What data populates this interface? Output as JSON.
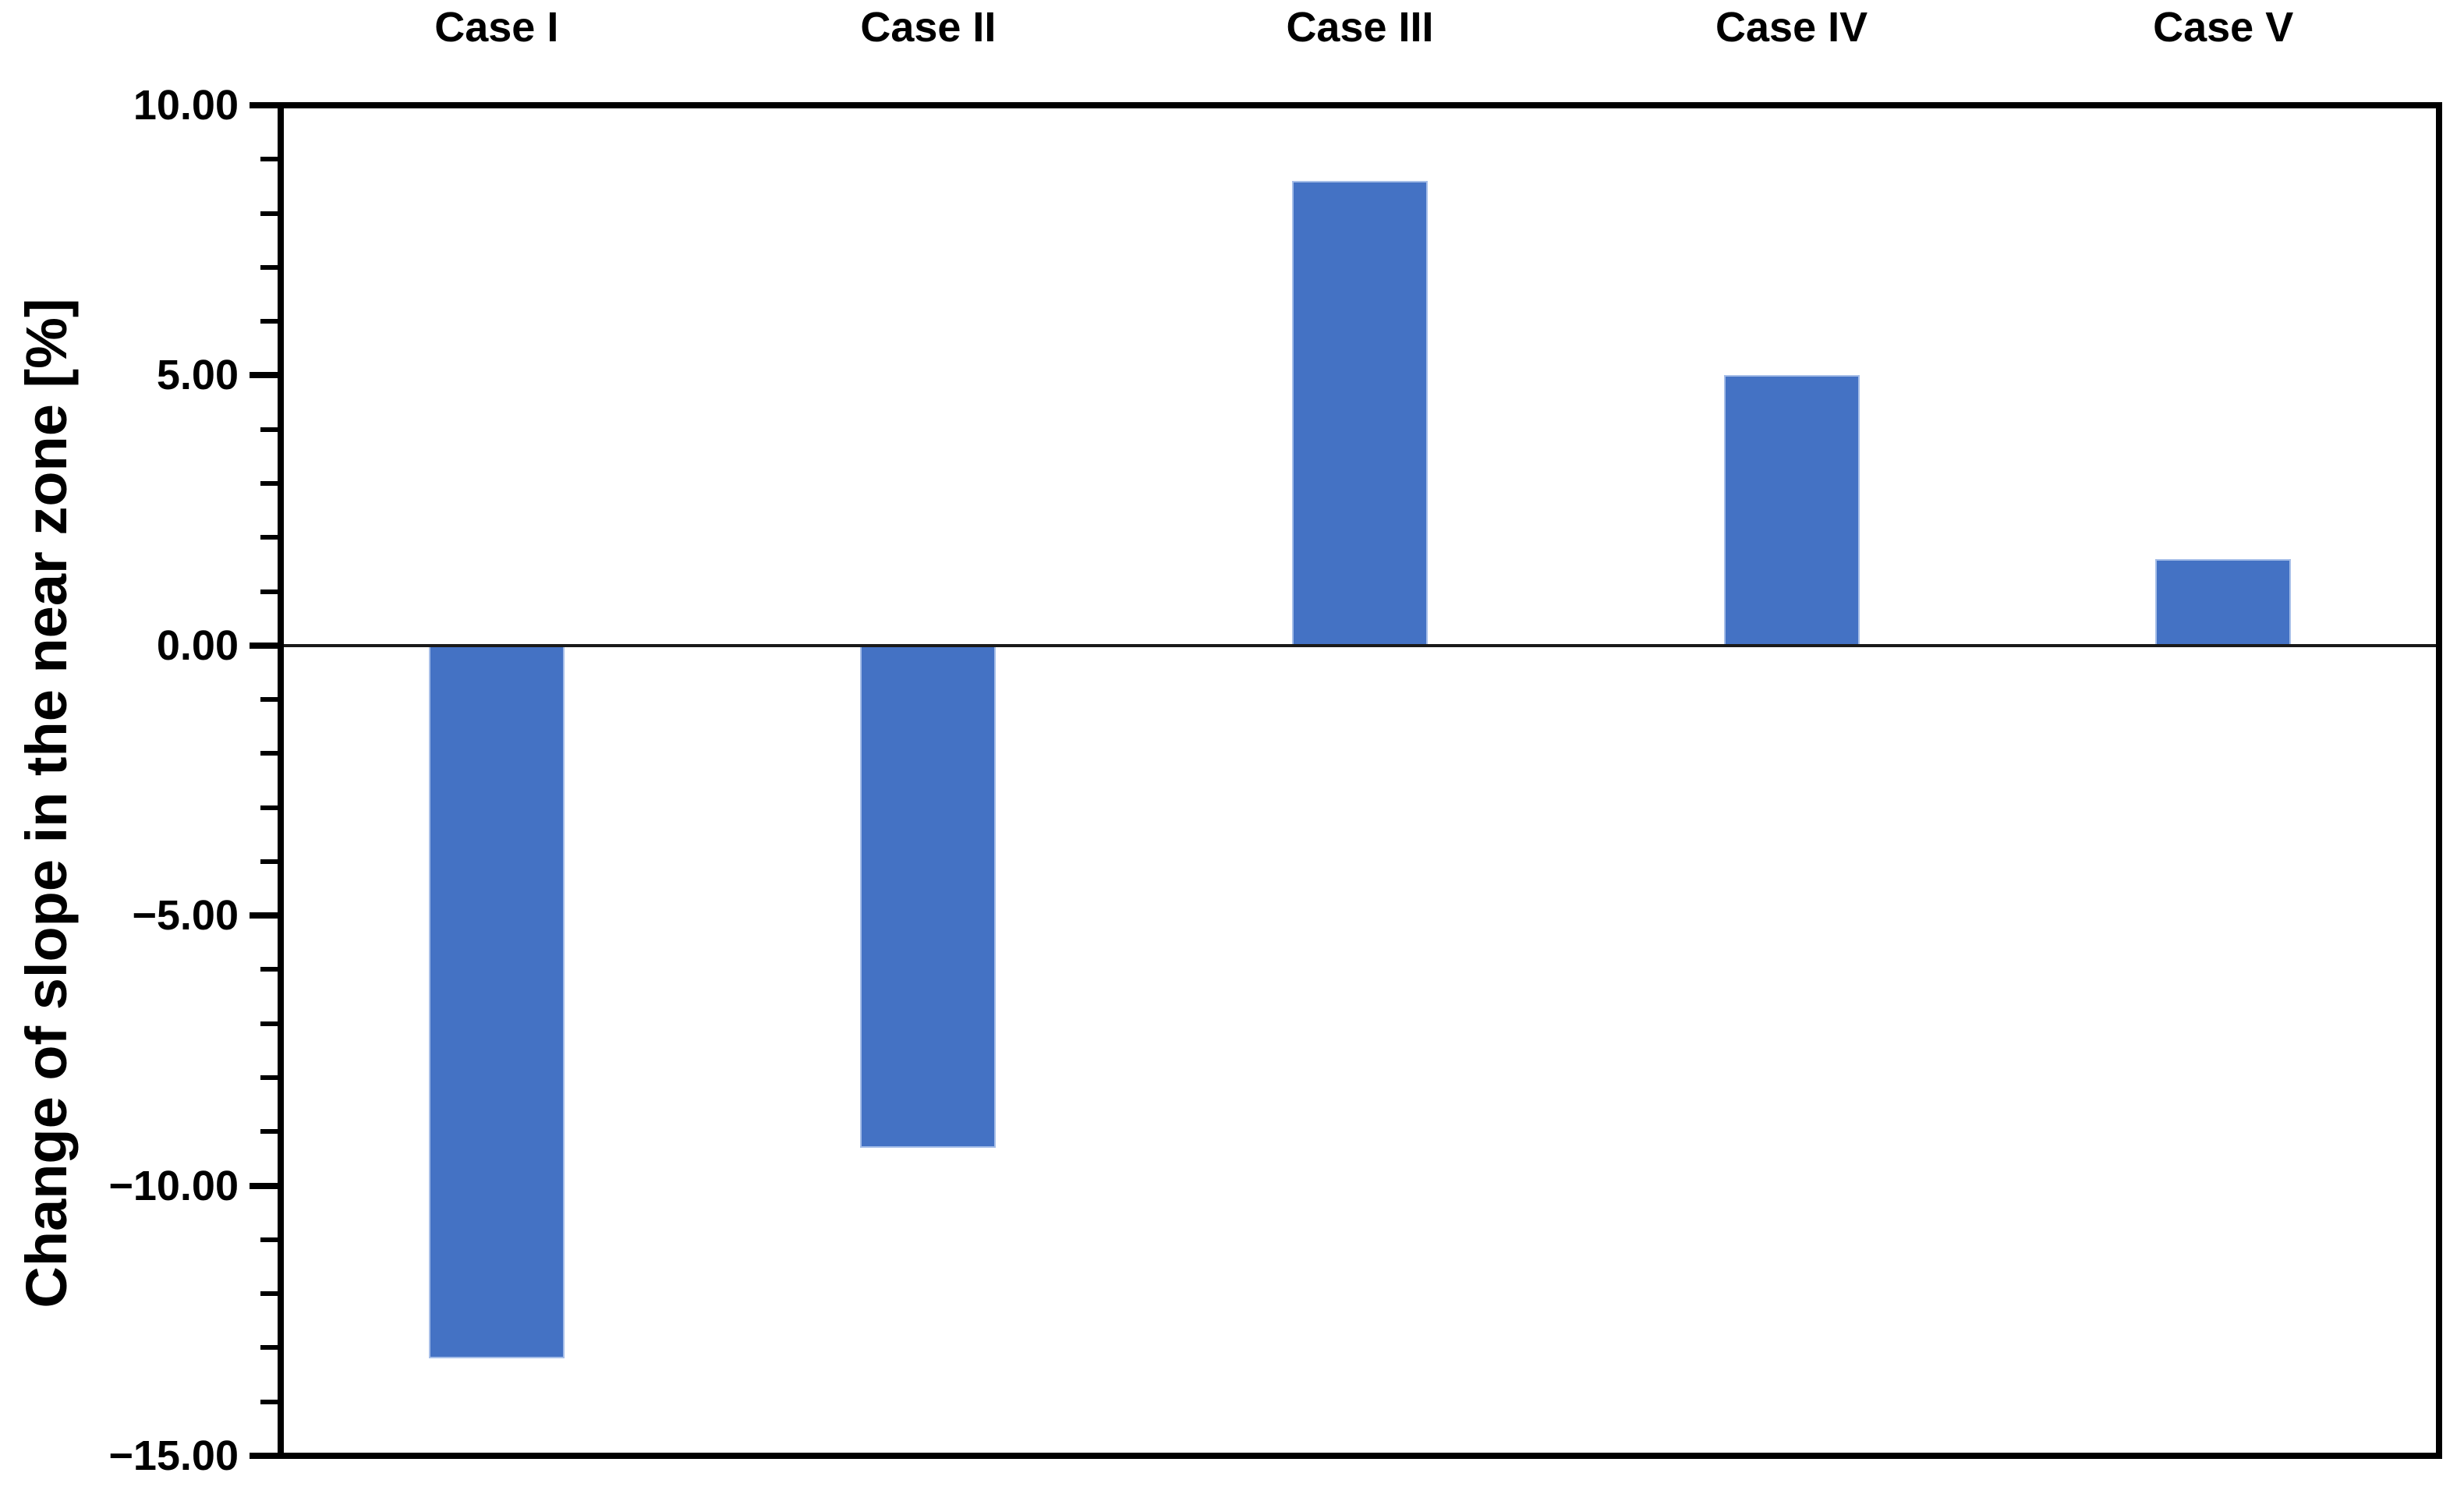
{
  "chart_data": {
    "type": "bar",
    "title": "",
    "xlabel": "",
    "ylabel": "Change of slope in the near zone [%]",
    "categories": [
      "Case I",
      "Case II",
      "Case III",
      "Case IV",
      "Case V"
    ],
    "values": [
      -13.2,
      -9.3,
      8.6,
      5.0,
      1.6
    ],
    "series_name": "Change of slope in the near zone",
    "unit": "%",
    "ylim": [
      -15,
      10
    ],
    "y_tick_values": [
      10,
      5,
      0,
      -5,
      -10,
      -15
    ],
    "y_tick_labels": [
      "10.00",
      "5.00",
      "0.00",
      "−5.00",
      "−10.00",
      "−15.00"
    ],
    "y_major_tick_step": 5,
    "y_minor_tick_step": 1,
    "grid": false,
    "legend_position": "none",
    "category_label_position": "top",
    "bar_color": "#4472C4",
    "bar_edge_color": "#A6BEE8",
    "axis_color": "#000000",
    "zero_line_color": "#1a1a1a",
    "background_color": "#FFFFFF"
  }
}
